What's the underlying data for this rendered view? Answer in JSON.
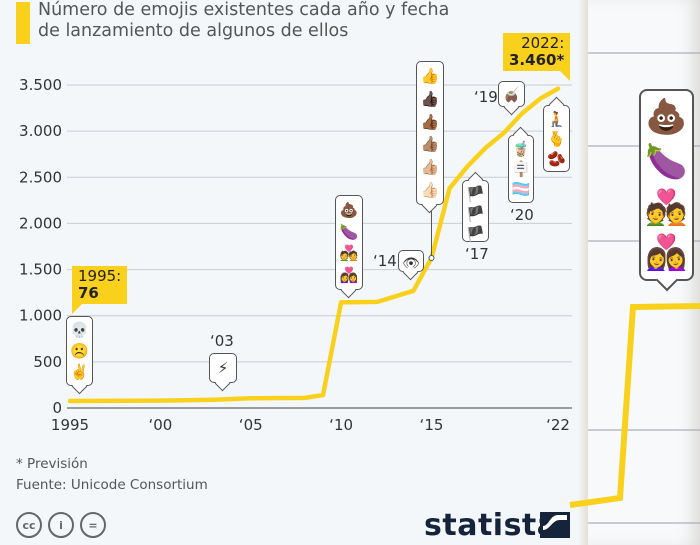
{
  "header": {
    "title_line1": "Número de emojis existentes cada año y fecha",
    "title_line2": "de lanzamiento de algunos de ellos",
    "accent_color": "#f9d11d"
  },
  "chart_data": {
    "type": "line",
    "title": "Número de emojis existentes cada año y fecha de lanzamiento de algunos de ellos",
    "xlabel": "",
    "ylabel": "",
    "ylim": [
      0,
      3500
    ],
    "xlim": [
      1995,
      2022
    ],
    "grid": true,
    "y_ticks": [
      {
        "value": 0,
        "label": "0"
      },
      {
        "value": 500,
        "label": "500"
      },
      {
        "value": 1000,
        "label": "1.000"
      },
      {
        "value": 1500,
        "label": "1.500"
      },
      {
        "value": 2000,
        "label": "2.000"
      },
      {
        "value": 2500,
        "label": "2.500"
      },
      {
        "value": 3000,
        "label": "3.000"
      },
      {
        "value": 3500,
        "label": "3.500"
      }
    ],
    "x_ticks": [
      {
        "value": 1995,
        "label": "1995"
      },
      {
        "value": 2000,
        "label": "‘00"
      },
      {
        "value": 2005,
        "label": "‘05"
      },
      {
        "value": 2010,
        "label": "‘10"
      },
      {
        "value": 2015,
        "label": "‘15"
      },
      {
        "value": 2022,
        "label": "‘22"
      }
    ],
    "series": [
      {
        "name": "Emojis existentes",
        "color": "#f9d11d",
        "x": [
          1995,
          2000,
          2003,
          2005,
          2008,
          2009,
          2010,
          2012,
          2014,
          2015,
          2016,
          2017,
          2018,
          2019,
          2020,
          2021,
          2022
        ],
        "values": [
          76,
          80,
          90,
          105,
          110,
          140,
          1145,
          1150,
          1270,
          1625,
          2380,
          2620,
          2820,
          2980,
          3190,
          3350,
          3460
        ]
      }
    ],
    "annotations": [
      {
        "label_year": "1995:",
        "label_value": "76",
        "x": 1995,
        "y": 76
      },
      {
        "label_year": "2022:",
        "label_value": "3.460*",
        "x": 2022,
        "y": 3460
      }
    ],
    "emoji_callouts": [
      {
        "year_label": "",
        "emojis": [
          "💀",
          "☹️",
          "✌️"
        ]
      },
      {
        "year_label": "‘03",
        "emojis": [
          "⚡"
        ]
      },
      {
        "year_label": "",
        "emojis": [
          "💩",
          "🍆",
          "💑",
          "👩‍❤️‍👩"
        ]
      },
      {
        "year_label": "‘14",
        "emojis": [
          "👁"
        ]
      },
      {
        "year_label": "",
        "emojis": [
          "👍",
          "👍🏿",
          "👍🏾",
          "👍🏽",
          "👍🏼",
          "👍🏻"
        ]
      },
      {
        "year_label": "‘17",
        "emojis": [
          "🏴",
          "🏴",
          "🏴"
        ]
      },
      {
        "year_label": "‘19",
        "emojis": [
          "🧉"
        ]
      },
      {
        "year_label": "‘20",
        "emojis": [
          "🧋",
          "🪧",
          "🏳️‍⚧️"
        ]
      },
      {
        "year_label": "",
        "emojis": [
          "🧎",
          "🫰",
          "🫘"
        ]
      }
    ]
  },
  "right_panel": {
    "emojis": [
      "💩",
      "🍆",
      "💑",
      "👩‍❤️‍👩"
    ]
  },
  "footer": {
    "note": "* Previsión",
    "source": "Fuente: Unicode Consortium",
    "license_icons": [
      "cc-icon",
      "attribution-icon",
      "no-derivatives-icon"
    ],
    "license_labels": [
      "cc",
      "i",
      "="
    ],
    "brand": "statista"
  }
}
